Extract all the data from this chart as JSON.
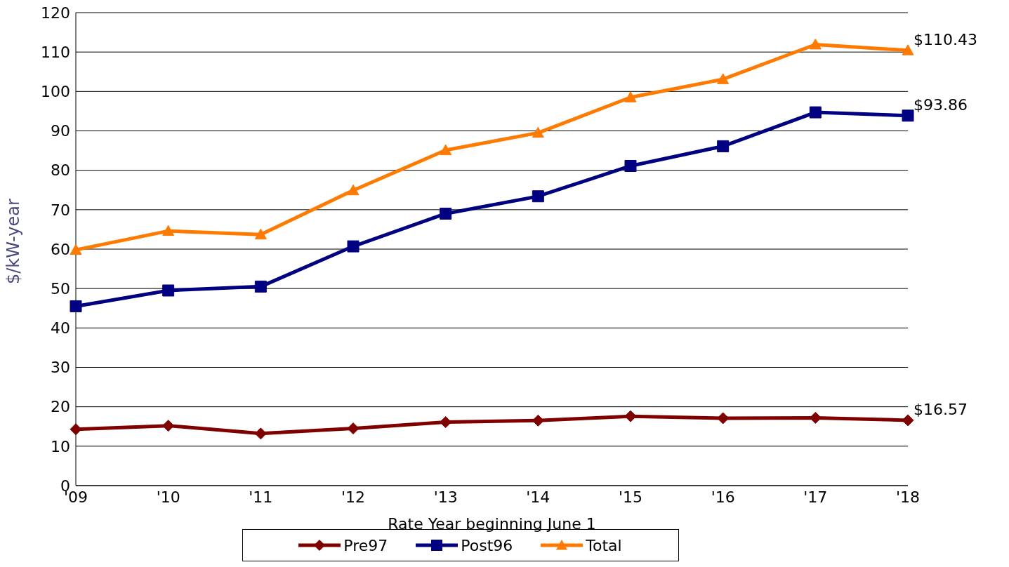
{
  "chart_data": {
    "type": "line",
    "xlabel": "Rate Year beginning June 1",
    "ylabel": "$/kW-year",
    "categories": [
      "'09",
      "'10",
      "'11",
      "'12",
      "'13",
      "'14",
      "'15",
      "'16",
      "'17",
      "'18"
    ],
    "series": [
      {
        "name": "Pre97",
        "color": "#800000",
        "marker": "diamond",
        "values": [
          14.3,
          15.2,
          13.2,
          14.5,
          16.1,
          16.5,
          17.6,
          17.1,
          17.2,
          16.57
        ],
        "value_labels": [
          null,
          null,
          null,
          null,
          null,
          null,
          null,
          null,
          null,
          "$16.57"
        ]
      },
      {
        "name": "Post96",
        "color": "#000080",
        "marker": "square",
        "values": [
          45.5,
          49.5,
          50.5,
          60.7,
          69.0,
          73.4,
          81.1,
          86.1,
          94.7,
          93.86
        ],
        "value_labels": [
          null,
          null,
          null,
          null,
          null,
          null,
          null,
          null,
          null,
          "$93.86"
        ]
      },
      {
        "name": "Total",
        "color": "#ff7a00",
        "marker": "triangle",
        "values": [
          59.8,
          64.6,
          63.7,
          74.9,
          85.1,
          89.5,
          98.5,
          103.1,
          111.9,
          110.43
        ],
        "value_labels": [
          null,
          null,
          null,
          null,
          null,
          null,
          null,
          null,
          null,
          "$110.43"
        ]
      }
    ],
    "ylim": [
      0,
      120
    ],
    "yticks": [
      0,
      10,
      20,
      30,
      40,
      50,
      60,
      70,
      80,
      90,
      100,
      110,
      120
    ],
    "grid": "y",
    "legend": "bottom"
  }
}
